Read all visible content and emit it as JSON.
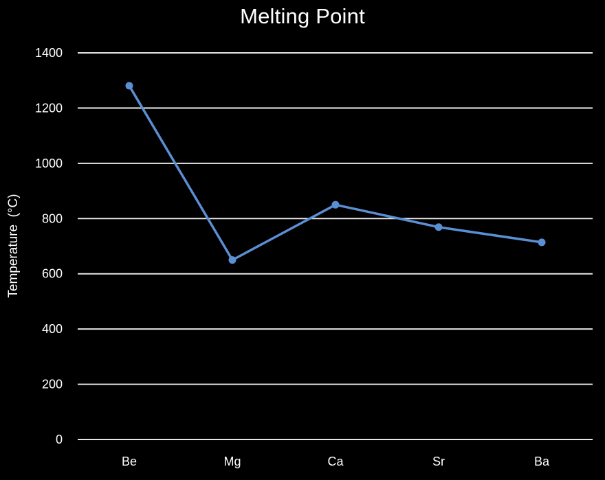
{
  "chart_data": {
    "type": "line",
    "title": "Melting Point",
    "xlabel": "",
    "ylabel": "Temperature  (°C)",
    "categories": [
      "Be",
      "Mg",
      "Ca",
      "Sr",
      "Ba"
    ],
    "series": [
      {
        "values": [
          1281,
          650,
          850,
          769,
          714
        ]
      }
    ],
    "ylim": [
      0,
      1400
    ],
    "yticks": [
      0,
      200,
      400,
      600,
      800,
      1000,
      1200,
      1400
    ],
    "grid": true,
    "legend": "none",
    "colors": {
      "background": "#000000",
      "line": "#5b8fd4",
      "marker": "#5b8fd4",
      "grid": "#e6e6e6",
      "text": "#ffffff"
    }
  }
}
